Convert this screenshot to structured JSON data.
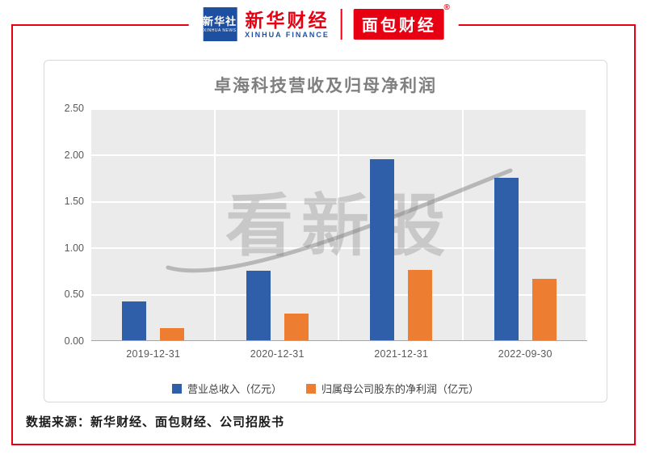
{
  "header": {
    "xinhua_agency": {
      "name": "新华社",
      "sub": "XINHUA NEWS"
    },
    "xinhua_finance": {
      "name": "新华财经",
      "sub": "XINHUA FINANCE"
    },
    "bread_finance": {
      "name": "面包财经",
      "reg": "®"
    }
  },
  "chart_data": {
    "type": "bar",
    "title": "卓海科技营收及归母净利润",
    "categories": [
      "2019-12-31",
      "2020-12-31",
      "2021-12-31",
      "2022-09-30"
    ],
    "series": [
      {
        "name": "营业总收入（亿元）",
        "color": "#2e5fa8",
        "values": [
          0.42,
          0.75,
          1.95,
          1.75
        ]
      },
      {
        "name": "归属母公司股东的净利润（亿元）",
        "color": "#ed7d31",
        "values": [
          0.13,
          0.29,
          0.76,
          0.66
        ]
      }
    ],
    "ylim": [
      0,
      2.5
    ],
    "yticks": [
      "2.50",
      "2.00",
      "1.50",
      "1.00",
      "0.50",
      "0.00"
    ],
    "grid": true,
    "legend_position": "bottom"
  },
  "watermark": "看新股",
  "footer": {
    "source": "数据来源：新华财经、面包财经、公司招股书"
  }
}
